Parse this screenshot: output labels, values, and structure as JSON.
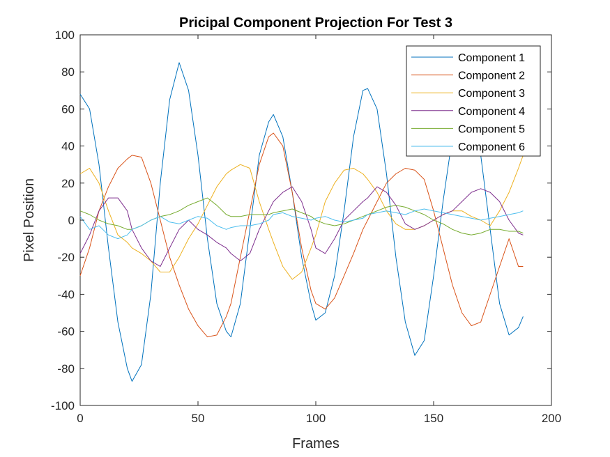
{
  "chart_data": {
    "type": "line",
    "title": "Pricipal Component Projection For Test 3",
    "xlabel": "Frames",
    "ylabel": "Pixel Position",
    "xlim": [
      0,
      200
    ],
    "ylim": [
      -100,
      100
    ],
    "xticks": [
      "0",
      "50",
      "100",
      "150",
      "200"
    ],
    "yticks": [
      "-100",
      "-80",
      "-60",
      "-40",
      "-20",
      "0",
      "20",
      "40",
      "60",
      "80",
      "100"
    ],
    "grid": false,
    "legend_position": "top-right",
    "x": [
      0,
      4,
      8,
      12,
      16,
      20,
      22,
      26,
      30,
      34,
      38,
      42,
      46,
      50,
      54,
      58,
      62,
      64,
      68,
      72,
      76,
      80,
      82,
      86,
      90,
      94,
      98,
      100,
      104,
      108,
      112,
      116,
      120,
      122,
      126,
      130,
      134,
      138,
      142,
      146,
      150,
      154,
      158,
      162,
      166,
      170,
      174,
      178,
      182,
      186,
      188
    ],
    "series": [
      {
        "name": "Component 1",
        "color": "#0072BD",
        "values": [
          68,
          60,
          30,
          -15,
          -55,
          -80,
          -87,
          -78,
          -40,
          20,
          65,
          85,
          70,
          35,
          -10,
          -45,
          -60,
          -63,
          -45,
          -5,
          35,
          53,
          57,
          45,
          15,
          -20,
          -45,
          -54,
          -50,
          -30,
          5,
          45,
          70,
          71,
          60,
          25,
          -20,
          -55,
          -73,
          -65,
          -30,
          10,
          45,
          65,
          60,
          35,
          -5,
          -45,
          -62,
          -58,
          -52
        ]
      },
      {
        "name": "Component 2",
        "color": "#D95319",
        "values": [
          -30,
          -15,
          5,
          18,
          28,
          33,
          35,
          34,
          20,
          0,
          -20,
          -35,
          -48,
          -57,
          -63,
          -62,
          -52,
          -45,
          -20,
          5,
          30,
          45,
          47,
          40,
          15,
          -15,
          -38,
          -45,
          -48,
          -42,
          -30,
          -18,
          -5,
          0,
          10,
          20,
          25,
          28,
          27,
          22,
          5,
          -15,
          -35,
          -50,
          -57,
          -55,
          -40,
          -25,
          -10,
          -25,
          -25
        ]
      },
      {
        "name": "Component 3",
        "color": "#EDB120",
        "values": [
          25,
          28,
          20,
          5,
          -8,
          -12,
          -15,
          -18,
          -22,
          -28,
          -28,
          -20,
          -10,
          -2,
          8,
          18,
          25,
          27,
          30,
          28,
          10,
          -5,
          -12,
          -25,
          -32,
          -28,
          -15,
          -8,
          10,
          20,
          27,
          28,
          25,
          22,
          15,
          5,
          -2,
          -5,
          -5,
          -3,
          0,
          3,
          5,
          5,
          2,
          0,
          -3,
          5,
          15,
          28,
          35
        ]
      },
      {
        "name": "Component 4",
        "color": "#7E2F8E",
        "values": [
          -18,
          -8,
          5,
          12,
          12,
          5,
          -5,
          -15,
          -22,
          -25,
          -15,
          -5,
          0,
          -5,
          -8,
          -12,
          -15,
          -18,
          -22,
          -18,
          -5,
          5,
          10,
          15,
          18,
          10,
          -5,
          -15,
          -18,
          -10,
          0,
          5,
          10,
          12,
          18,
          15,
          8,
          -2,
          -5,
          -3,
          0,
          3,
          5,
          10,
          15,
          17,
          15,
          10,
          0,
          -7,
          -8
        ]
      },
      {
        "name": "Component 5",
        "color": "#77AC30",
        "values": [
          5,
          3,
          0,
          -2,
          -3,
          -5,
          -5,
          -3,
          0,
          2,
          3,
          5,
          8,
          10,
          12,
          8,
          3,
          2,
          2,
          3,
          3,
          3,
          4,
          5,
          6,
          4,
          2,
          0,
          -2,
          -3,
          -2,
          0,
          2,
          3,
          5,
          7,
          8,
          7,
          5,
          3,
          0,
          -2,
          -5,
          -7,
          -8,
          -7,
          -5,
          -5,
          -6,
          -6,
          -7
        ]
      },
      {
        "name": "Component 6",
        "color": "#4DBEEE",
        "values": [
          2,
          -5,
          -3,
          -8,
          -10,
          -8,
          -5,
          -3,
          0,
          2,
          -1,
          -2,
          0,
          2,
          1,
          -3,
          -5,
          -4,
          -3,
          -3,
          -2,
          0,
          3,
          4,
          2,
          1,
          0,
          1,
          2,
          0,
          -1,
          0,
          1,
          3,
          4,
          5,
          4,
          3,
          5,
          6,
          5,
          4,
          3,
          2,
          1,
          0,
          1,
          2,
          3,
          4,
          5
        ]
      }
    ]
  }
}
